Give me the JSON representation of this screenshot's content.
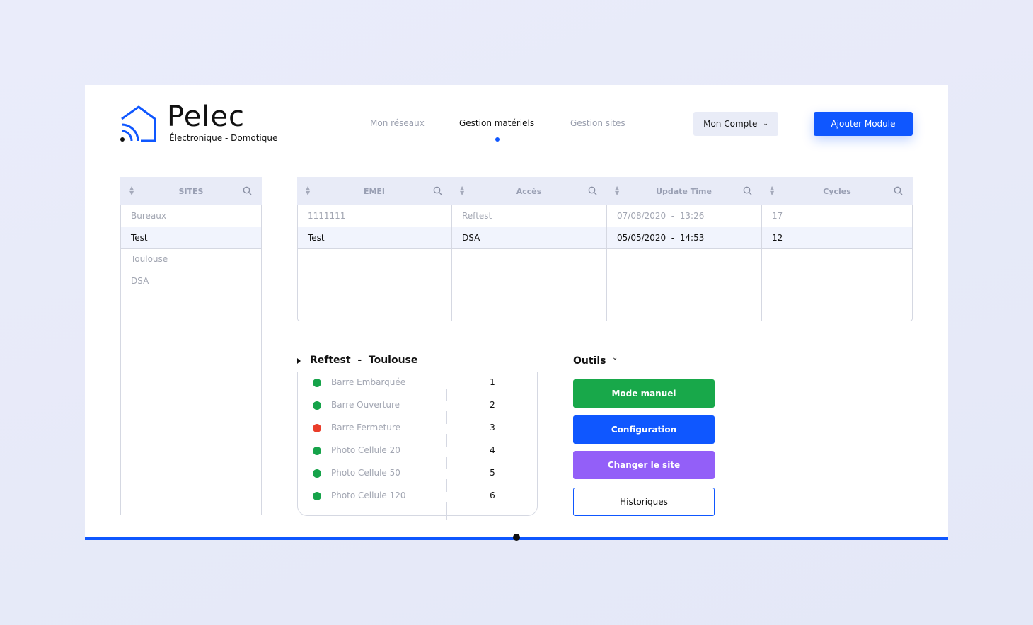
{
  "brand": {
    "name": "Pelec",
    "tagline": "Électronique - Domotique"
  },
  "nav": {
    "items": [
      "Mon réseaux",
      "Gestion matériels",
      "Gestion sites"
    ],
    "active": 1
  },
  "account": "Mon Compte",
  "add_button": "Ajouter Module",
  "sites": {
    "header": "SITES",
    "rows": [
      "Bureaux",
      "Test",
      "Toulouse",
      "DSA"
    ],
    "selected": 1
  },
  "modules": {
    "headers": [
      "EMEI",
      "Accès",
      "Update Time",
      "Cycles"
    ],
    "rows": [
      [
        "1111111",
        "Reftest",
        "07/08/2020  -  13:26",
        "17"
      ],
      [
        "Test",
        "DSA",
        "05/05/2020  -  14:53",
        "12"
      ]
    ],
    "selected": 1
  },
  "detail": {
    "title": "Reftest  -  Toulouse",
    "items": [
      {
        "label": "Barre Embarquée",
        "value": 1,
        "color": "#16a34a"
      },
      {
        "label": "Barre Ouverture",
        "value": 2,
        "color": "#16a34a"
      },
      {
        "label": "Barre Fermeture",
        "value": 3,
        "color": "#ea3d2a"
      },
      {
        "label": "Photo Cellule 20",
        "value": 4,
        "color": "#16a34a"
      },
      {
        "label": "Photo Cellule 50",
        "value": 5,
        "color": "#16a34a"
      },
      {
        "label": "Photo Cellule 120",
        "value": 6,
        "color": "#16a34a"
      }
    ]
  },
  "tools": {
    "title": "Outils",
    "buttons": [
      {
        "label": "Mode manuel",
        "color": "#18a84a"
      },
      {
        "label": "Configuration",
        "color": "#0f57ff"
      },
      {
        "label": "Changer le site",
        "color": "#935ff8"
      },
      {
        "label": "Historiques",
        "color": "#ffffff"
      }
    ]
  }
}
